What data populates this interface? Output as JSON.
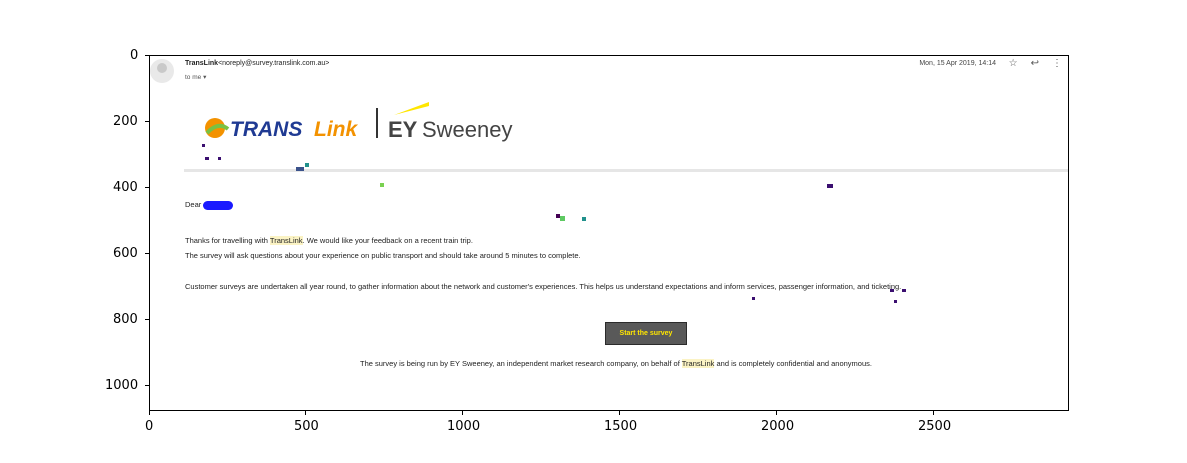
{
  "email": {
    "sender_name": "TransLink",
    "sender_email": "<noreply@survey.translink.com.au>",
    "to_line": "to me",
    "date": "Mon, 15 Apr 2019, 14:14",
    "logo_translink": "TRANSLink",
    "logo_ey": "EY Sweeney",
    "greeting": "Dear",
    "line1_a": "Thanks for travelling with ",
    "line1_hl": "TransLink",
    "line1_b": ". We would like your feedback on a recent train trip.",
    "line2": "The survey will ask questions about your experience on public transport and should take around 5 minutes to complete.",
    "line3": "Customer surveys are undertaken all year round, to gather information about the network and customer's experiences. This helps us understand expectations and inform services, passenger information, and ticketing.",
    "cta_label": "Start the survey",
    "footer_a": "The survey is being run by EY Sweeney, an independent market research company, on behalf of ",
    "footer_hl": "TransLink",
    "footer_b": " and is completely confidential and anonymous."
  },
  "icons": [
    "star-icon",
    "reply-icon",
    "more-vert-icon",
    "chevron-down-icon",
    "avatar-icon"
  ],
  "axis": {
    "x_ticks": [
      "0",
      "500",
      "1000",
      "1500",
      "2000",
      "2500"
    ],
    "y_ticks": [
      "0",
      "200",
      "400",
      "600",
      "800",
      "1000"
    ]
  },
  "colors": {
    "cta_bg": "#595959",
    "cta_text": "#ffe600",
    "highlight": "#fbf3c4",
    "redaction": "#1a1aff"
  }
}
